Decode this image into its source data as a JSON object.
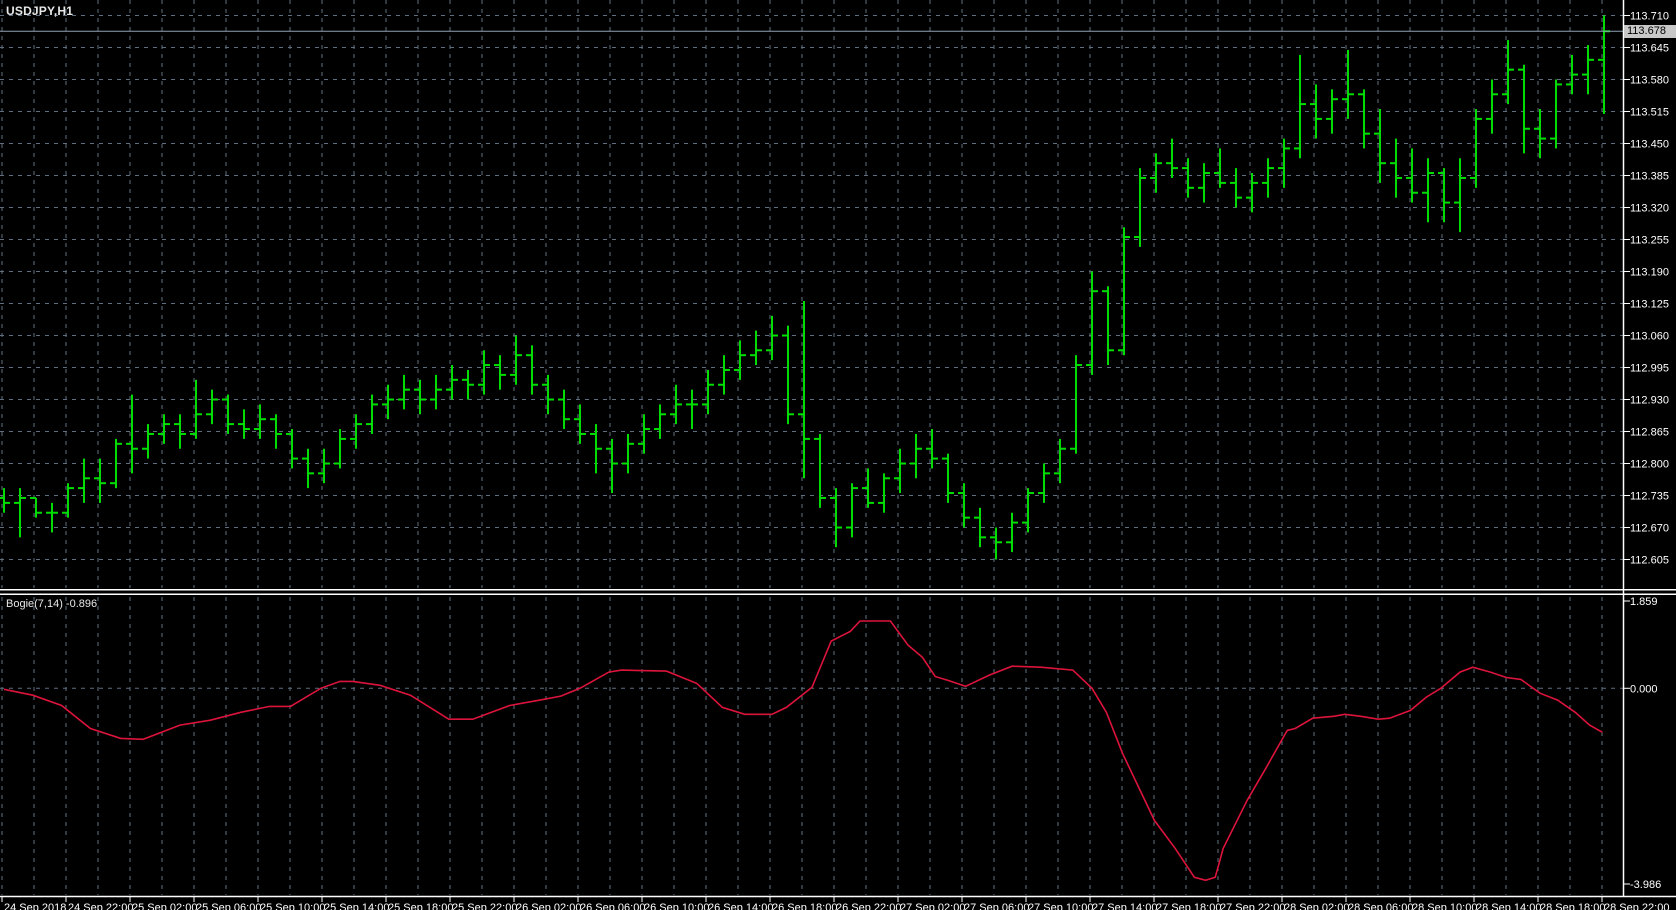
{
  "main_chart": {
    "symbol_label": "USDJPY,H1",
    "timeframe": "H1",
    "current_price_label": "113.678",
    "price_axis_labels": [
      "113.710",
      "113.645",
      "113.580",
      "113.515",
      "113.450",
      "113.385",
      "113.320",
      "113.255",
      "113.190",
      "113.125",
      "113.060",
      "112.995",
      "112.930",
      "112.865",
      "112.800",
      "112.735",
      "112.670",
      "112.605"
    ],
    "time_axis_labels": [
      "24 Sep 2018",
      "24 Sep 22:00",
      "25 Sep 02:00",
      "25 Sep 06:00",
      "25 Sep 10:00",
      "25 Sep 14:00",
      "25 Sep 18:00",
      "25 Sep 22:00",
      "26 Sep 02:00",
      "26 Sep 06:00",
      "26 Sep 10:00",
      "26 Sep 14:00",
      "26 Sep 18:00",
      "26 Sep 22:00",
      "27 Sep 02:00",
      "27 Sep 06:00",
      "27 Sep 10:00",
      "27 Sep 14:00",
      "27 Sep 18:00",
      "27 Sep 22:00",
      "28 Sep 02:00",
      "28 Sep 06:00",
      "28 Sep 10:00",
      "28 Sep 14:00",
      "28 Sep 18:00",
      "28 Sep 22:00"
    ]
  },
  "indicator": {
    "label": "Bogie(7,14) -0.896",
    "name": "Bogie",
    "params": "7,14",
    "current_value": "-0.896",
    "axis_labels": [
      "1.859",
      "0.000",
      "-3.986"
    ]
  },
  "colors": {
    "background": "#000000",
    "grid": "#5f6f80",
    "bar": "#00dd00",
    "indicator_line": "#dc143c",
    "price_line": "#8fa3b5",
    "axis_line": "#ffffff",
    "axis_text": "#ffffff",
    "separator": "#ffffff",
    "price_badge_bg": "#c8c8c8",
    "price_badge_text": "#000000"
  },
  "chart_data": [
    {
      "type": "bar",
      "subtype": "ohlc",
      "title": "USDJPY,H1",
      "xlabel": "date/time",
      "ylabel": "price",
      "ylim": [
        112.605,
        113.71
      ],
      "y_step": 0.065,
      "grid": true,
      "x_labels": [
        "24 Sep 2018",
        "24 Sep 22:00",
        "25 Sep 02:00",
        "25 Sep 06:00",
        "25 Sep 10:00",
        "25 Sep 14:00",
        "25 Sep 18:00",
        "25 Sep 22:00",
        "26 Sep 02:00",
        "26 Sep 06:00",
        "26 Sep 10:00",
        "26 Sep 14:00",
        "26 Sep 18:00",
        "26 Sep 22:00",
        "27 Sep 02:00",
        "27 Sep 06:00",
        "27 Sep 10:00",
        "27 Sep 14:00",
        "27 Sep 18:00",
        "27 Sep 22:00",
        "28 Sep 02:00",
        "28 Sep 06:00",
        "28 Sep 10:00",
        "28 Sep 14:00",
        "28 Sep 18:00",
        "28 Sep 22:00"
      ],
      "current_price": 113.678,
      "bars_ohlc": [
        [
          112.73,
          112.75,
          112.7,
          112.72
        ],
        [
          112.72,
          112.75,
          112.65,
          112.73
        ],
        [
          112.73,
          112.73,
          112.69,
          112.7
        ],
        [
          112.7,
          112.72,
          112.66,
          112.7
        ],
        [
          112.7,
          112.76,
          112.69,
          112.75
        ],
        [
          112.75,
          112.81,
          112.72,
          112.77
        ],
        [
          112.77,
          112.81,
          112.72,
          112.76
        ],
        [
          112.76,
          112.85,
          112.75,
          112.84
        ],
        [
          112.84,
          112.94,
          112.78,
          112.83
        ],
        [
          112.83,
          112.88,
          112.81,
          112.86
        ],
        [
          112.86,
          112.9,
          112.84,
          112.88
        ],
        [
          112.88,
          112.9,
          112.83,
          112.86
        ],
        [
          112.86,
          112.97,
          112.85,
          112.9
        ],
        [
          112.9,
          112.95,
          112.88,
          112.93
        ],
        [
          112.93,
          112.94,
          112.86,
          112.88
        ],
        [
          112.88,
          112.91,
          112.85,
          112.87
        ],
        [
          112.87,
          112.92,
          112.85,
          112.89
        ],
        [
          112.89,
          112.9,
          112.83,
          112.86
        ],
        [
          112.86,
          112.87,
          112.79,
          112.81
        ],
        [
          112.81,
          112.83,
          112.75,
          112.78
        ],
        [
          112.78,
          112.83,
          112.76,
          112.8
        ],
        [
          112.8,
          112.87,
          112.79,
          112.85
        ],
        [
          112.85,
          112.9,
          112.83,
          112.88
        ],
        [
          112.88,
          112.94,
          112.86,
          112.92
        ],
        [
          112.92,
          112.96,
          112.89,
          112.93
        ],
        [
          112.93,
          112.98,
          112.91,
          112.95
        ],
        [
          112.95,
          112.97,
          112.9,
          112.93
        ],
        [
          112.93,
          112.98,
          112.91,
          112.95
        ],
        [
          112.95,
          113.0,
          112.93,
          112.97
        ],
        [
          112.97,
          112.99,
          112.93,
          112.96
        ],
        [
          112.96,
          113.03,
          112.94,
          113.0
        ],
        [
          113.0,
          113.02,
          112.95,
          112.98
        ],
        [
          112.98,
          113.06,
          112.96,
          113.02
        ],
        [
          113.02,
          113.04,
          112.94,
          112.96
        ],
        [
          112.96,
          112.98,
          112.9,
          112.93
        ],
        [
          112.93,
          112.95,
          112.87,
          112.89
        ],
        [
          112.89,
          112.92,
          112.84,
          112.86
        ],
        [
          112.86,
          112.88,
          112.78,
          112.83
        ],
        [
          112.83,
          112.85,
          112.74,
          112.8
        ],
        [
          112.8,
          112.86,
          112.78,
          112.84
        ],
        [
          112.84,
          112.9,
          112.82,
          112.87
        ],
        [
          112.87,
          112.92,
          112.85,
          112.9
        ],
        [
          112.9,
          112.96,
          112.88,
          112.92
        ],
        [
          112.92,
          112.95,
          112.87,
          112.92
        ],
        [
          112.92,
          112.99,
          112.9,
          112.96
        ],
        [
          112.96,
          113.02,
          112.94,
          112.99
        ],
        [
          112.99,
          113.05,
          112.97,
          113.02
        ],
        [
          113.02,
          113.07,
          113.0,
          113.03
        ],
        [
          113.03,
          113.1,
          113.01,
          113.06
        ],
        [
          113.06,
          113.08,
          112.88,
          112.9
        ],
        [
          112.9,
          113.13,
          112.77,
          112.85
        ],
        [
          112.85,
          112.86,
          112.71,
          112.73
        ],
        [
          112.73,
          112.75,
          112.63,
          112.67
        ],
        [
          112.67,
          112.76,
          112.65,
          112.75
        ],
        [
          112.75,
          112.79,
          112.71,
          112.72
        ],
        [
          112.72,
          112.78,
          112.7,
          112.77
        ],
        [
          112.77,
          112.83,
          112.74,
          112.8
        ],
        [
          112.8,
          112.86,
          112.77,
          112.83
        ],
        [
          112.83,
          112.87,
          112.79,
          112.81
        ],
        [
          112.81,
          112.82,
          112.72,
          112.74
        ],
        [
          112.74,
          112.76,
          112.67,
          112.69
        ],
        [
          112.69,
          112.71,
          112.63,
          112.65
        ],
        [
          112.65,
          112.67,
          112.605,
          112.64
        ],
        [
          112.64,
          112.7,
          112.62,
          112.68
        ],
        [
          112.68,
          112.75,
          112.66,
          112.74
        ],
        [
          112.74,
          112.8,
          112.72,
          112.78
        ],
        [
          112.78,
          112.85,
          112.76,
          112.83
        ],
        [
          112.83,
          113.02,
          112.82,
          113.0
        ],
        [
          113.0,
          113.19,
          112.98,
          113.15
        ],
        [
          113.15,
          113.16,
          113.0,
          113.03
        ],
        [
          113.03,
          113.28,
          113.02,
          113.26
        ],
        [
          113.26,
          113.4,
          113.24,
          113.38
        ],
        [
          113.38,
          113.43,
          113.35,
          113.41
        ],
        [
          113.41,
          113.46,
          113.38,
          113.4
        ],
        [
          113.4,
          113.42,
          113.34,
          113.36
        ],
        [
          113.36,
          113.41,
          113.33,
          113.39
        ],
        [
          113.39,
          113.44,
          113.36,
          113.37
        ],
        [
          113.37,
          113.4,
          113.32,
          113.34
        ],
        [
          113.34,
          113.39,
          113.31,
          113.37
        ],
        [
          113.37,
          113.42,
          113.34,
          113.4
        ],
        [
          113.4,
          113.46,
          113.36,
          113.44
        ],
        [
          113.44,
          113.63,
          113.42,
          113.53
        ],
        [
          113.53,
          113.57,
          113.46,
          113.5
        ],
        [
          113.5,
          113.56,
          113.47,
          113.54
        ],
        [
          113.54,
          113.64,
          113.5,
          113.55
        ],
        [
          113.55,
          113.56,
          113.44,
          113.47
        ],
        [
          113.47,
          113.52,
          113.37,
          113.41
        ],
        [
          113.41,
          113.46,
          113.34,
          113.38
        ],
        [
          113.38,
          113.44,
          113.33,
          113.35
        ],
        [
          113.35,
          113.42,
          113.29,
          113.39
        ],
        [
          113.39,
          113.4,
          113.29,
          113.33
        ],
        [
          113.33,
          113.42,
          113.27,
          113.38
        ],
        [
          113.38,
          113.52,
          113.36,
          113.5
        ],
        [
          113.5,
          113.58,
          113.47,
          113.55
        ],
        [
          113.55,
          113.66,
          113.53,
          113.6
        ],
        [
          113.6,
          113.61,
          113.43,
          113.48
        ],
        [
          113.48,
          113.52,
          113.42,
          113.46
        ],
        [
          113.46,
          113.58,
          113.44,
          113.57
        ],
        [
          113.57,
          113.63,
          113.55,
          113.59
        ],
        [
          113.59,
          113.65,
          113.55,
          113.62
        ],
        [
          113.62,
          113.71,
          113.51,
          113.678
        ]
      ]
    },
    {
      "type": "line",
      "title": "Bogie(7,14)",
      "legend_position": "top-left",
      "current": -0.896,
      "ylim": [
        -3.986,
        1.859
      ],
      "zero_line": true,
      "x_unit": "bar_index",
      "points": [
        [
          0,
          -0.02
        ],
        [
          1.8,
          -0.14
        ],
        [
          3.6,
          -0.35
        ],
        [
          5.4,
          -0.82
        ],
        [
          7.3,
          -1.02
        ],
        [
          8.7,
          -1.04
        ],
        [
          11,
          -0.75
        ],
        [
          12.9,
          -0.65
        ],
        [
          14.8,
          -0.49
        ],
        [
          16.6,
          -0.37
        ],
        [
          17.9,
          -0.37
        ],
        [
          19.8,
          0
        ],
        [
          21,
          0.14
        ],
        [
          21.8,
          0.14
        ],
        [
          23.5,
          0.06
        ],
        [
          25.4,
          -0.14
        ],
        [
          27.8,
          -0.63
        ],
        [
          29.3,
          -0.63
        ],
        [
          31.6,
          -0.35
        ],
        [
          33.5,
          -0.24
        ],
        [
          34.8,
          -0.16
        ],
        [
          36,
          0
        ],
        [
          37.8,
          0.33
        ],
        [
          38.6,
          0.37
        ],
        [
          41.4,
          0.35
        ],
        [
          43.3,
          0.1
        ],
        [
          44.9,
          -0.39
        ],
        [
          46.3,
          -0.53
        ],
        [
          48,
          -0.53
        ],
        [
          48.9,
          -0.39
        ],
        [
          50.5,
          0.02
        ],
        [
          51.7,
          0.96
        ],
        [
          52.9,
          1.16
        ],
        [
          53.5,
          1.37
        ],
        [
          55.4,
          1.37
        ],
        [
          56.5,
          0.88
        ],
        [
          57.4,
          0.63
        ],
        [
          58.2,
          0.24
        ],
        [
          59,
          0.16
        ],
        [
          60.1,
          0.04
        ],
        [
          61.6,
          0.27
        ],
        [
          63,
          0.45
        ],
        [
          64.8,
          0.43
        ],
        [
          66.8,
          0.37
        ],
        [
          68,
          0
        ],
        [
          68.9,
          -0.49
        ],
        [
          69.9,
          -1.32
        ],
        [
          71.9,
          -2.69
        ],
        [
          73.2,
          -3.26
        ],
        [
          74.4,
          -3.85
        ],
        [
          75.1,
          -3.91
        ],
        [
          75.7,
          -3.85
        ],
        [
          76.2,
          -3.26
        ],
        [
          77.7,
          -2.28
        ],
        [
          78.9,
          -1.61
        ],
        [
          80.2,
          -0.86
        ],
        [
          80.7,
          -0.82
        ],
        [
          81.8,
          -0.61
        ],
        [
          83.1,
          -0.57
        ],
        [
          83.8,
          -0.53
        ],
        [
          84.8,
          -0.57
        ],
        [
          85.9,
          -0.63
        ],
        [
          86.6,
          -0.61
        ],
        [
          87.9,
          -0.45
        ],
        [
          88.9,
          -0.18
        ],
        [
          89.8,
          0
        ],
        [
          91,
          0.33
        ],
        [
          91.8,
          0.43
        ],
        [
          92.9,
          0.33
        ],
        [
          93.9,
          0.22
        ],
        [
          94.8,
          0.18
        ],
        [
          96,
          -0.1
        ],
        [
          97.1,
          -0.24
        ],
        [
          98.2,
          -0.49
        ],
        [
          99.1,
          -0.75
        ],
        [
          99.9,
          -0.896
        ]
      ]
    }
  ]
}
